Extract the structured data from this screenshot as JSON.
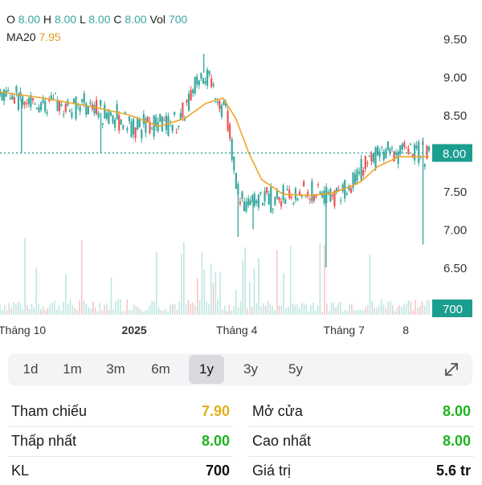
{
  "header": {
    "o_label": "O",
    "o_value": "8.00",
    "h_label": "H",
    "h_value": "8.00",
    "l_label": "L",
    "l_value": "8.00",
    "c_label": "C",
    "c_value": "8.00",
    "vol_label": "Vol",
    "vol_value": "700",
    "ma_label": "MA20",
    "ma_value": "7.95"
  },
  "colors": {
    "up": "#3aa8a0",
    "down": "#ef5350",
    "ma": "#f0a52a",
    "vol_up": "#bfe6e2",
    "vol_down": "#f7c6c6",
    "price_tag": "#1a9e8f",
    "ref": "#e0a020",
    "green": "#1eb41e"
  },
  "chart_data": {
    "type": "candlestick",
    "y_ticks": [
      "9.50",
      "9.00",
      "8.50",
      "8.00",
      "7.50",
      "7.00",
      "6.50"
    ],
    "ylim": [
      6.5,
      9.5
    ],
    "x_ticks": [
      "Tháng 10",
      "2025",
      "Tháng 4",
      "Tháng 7",
      "8"
    ],
    "current_price": "8.00",
    "current_volume": "700",
    "price_segments": [
      {
        "from": 0,
        "to": 0.08,
        "start": 8.8,
        "end": 8.65
      },
      {
        "from": 0.08,
        "to": 0.2,
        "start": 8.65,
        "end": 8.6
      },
      {
        "from": 0.2,
        "to": 0.32,
        "start": 8.6,
        "end": 8.35
      },
      {
        "from": 0.32,
        "to": 0.42,
        "start": 8.35,
        "end": 8.4
      },
      {
        "from": 0.42,
        "to": 0.47,
        "start": 8.4,
        "end": 9.1
      },
      {
        "from": 0.47,
        "to": 0.53,
        "start": 9.1,
        "end": 8.5
      },
      {
        "from": 0.53,
        "to": 0.56,
        "start": 8.5,
        "end": 7.3
      },
      {
        "from": 0.56,
        "to": 0.6,
        "start": 7.3,
        "end": 7.4
      },
      {
        "from": 0.6,
        "to": 0.8,
        "start": 7.4,
        "end": 7.5
      },
      {
        "from": 0.8,
        "to": 0.88,
        "start": 7.5,
        "end": 8.0
      },
      {
        "from": 0.88,
        "to": 1.0,
        "start": 8.0,
        "end": 8.0
      }
    ],
    "ma_points": [
      [
        0.0,
        8.8
      ],
      [
        0.1,
        8.72
      ],
      [
        0.22,
        8.6
      ],
      [
        0.3,
        8.5
      ],
      [
        0.37,
        8.35
      ],
      [
        0.43,
        8.45
      ],
      [
        0.48,
        8.65
      ],
      [
        0.52,
        8.72
      ],
      [
        0.55,
        8.45
      ],
      [
        0.58,
        8.0
      ],
      [
        0.61,
        7.65
      ],
      [
        0.66,
        7.46
      ],
      [
        0.72,
        7.44
      ],
      [
        0.78,
        7.48
      ],
      [
        0.84,
        7.62
      ],
      [
        0.88,
        7.82
      ],
      [
        0.93,
        7.95
      ],
      [
        1.0,
        7.95
      ]
    ],
    "spikes": [
      {
        "at": 0.05,
        "low": 8.0
      },
      {
        "at": 0.235,
        "low": 8.0
      },
      {
        "at": 0.475,
        "high": 9.3
      },
      {
        "at": 0.555,
        "low": 6.9
      },
      {
        "at": 0.59,
        "low": 7.0
      },
      {
        "at": 0.76,
        "low": 6.5
      },
      {
        "at": 0.986,
        "low": 6.8,
        "high": 8.2
      }
    ],
    "volume_level": 0.07
  },
  "timeframes": {
    "items": [
      {
        "label": "1d"
      },
      {
        "label": "1m"
      },
      {
        "label": "3m"
      },
      {
        "label": "6m"
      },
      {
        "label": "1y",
        "active": true
      },
      {
        "label": "3y"
      },
      {
        "label": "5y"
      }
    ]
  },
  "stats": {
    "ref_label": "Tham chiếu",
    "ref_value": "7.90",
    "open_label": "Mở cửa",
    "open_value": "8.00",
    "low_label": "Thấp nhất",
    "low_value": "8.00",
    "high_label": "Cao nhất",
    "high_value": "8.00",
    "vol_label": "KL",
    "vol_value": "700",
    "value_label": "Giá trị",
    "value_value": "5.6 tr"
  }
}
